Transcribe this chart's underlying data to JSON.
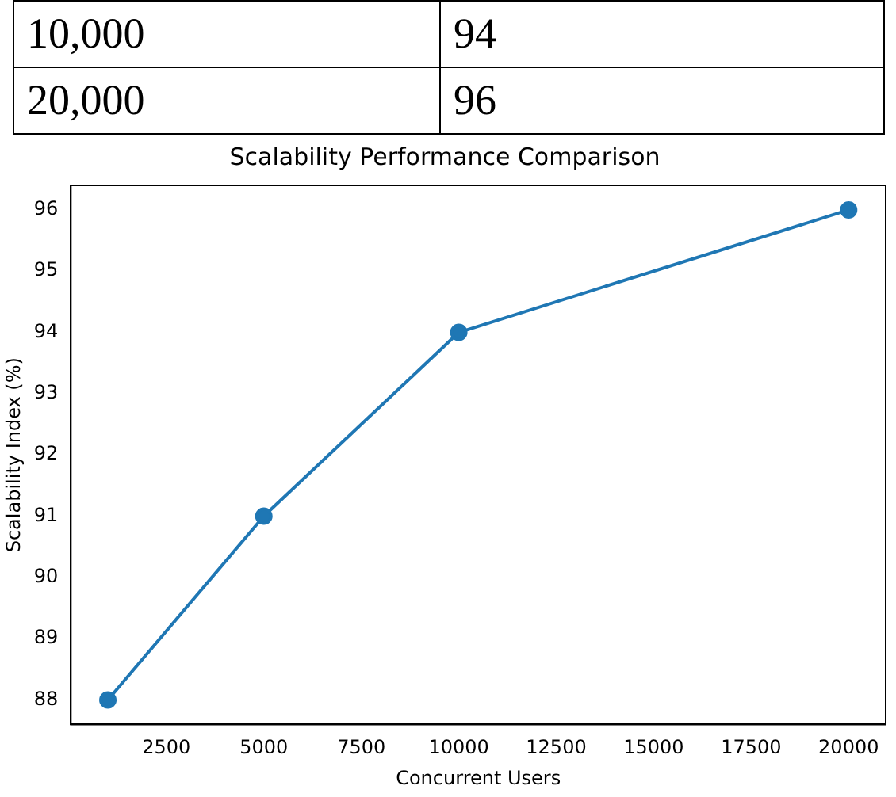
{
  "chart_data": {
    "type": "line",
    "title": "Scalability Performance Comparison",
    "xlabel": "Concurrent Users",
    "ylabel": "Scalability Index (%)",
    "annotations": [
      "10,000",
      "94",
      "20,000",
      "96"
    ],
    "x": [
      1000,
      5000,
      10000,
      20000
    ],
    "series": [
      {
        "color": "#1f77b4",
        "values": [
          88,
          91,
          94,
          96
        ]
      }
    ],
    "xlim": [
      50,
      20950
    ],
    "xticks": [
      2500,
      5000,
      7500,
      10000,
      12500,
      15000,
      17500,
      20000
    ],
    "ylim": [
      87.6,
      96.4
    ],
    "yticks": [
      88,
      89,
      90,
      91,
      92,
      93,
      94,
      95,
      96
    ],
    "grid": false,
    "legend": false,
    "marker": "circle",
    "line_style": "solid"
  }
}
